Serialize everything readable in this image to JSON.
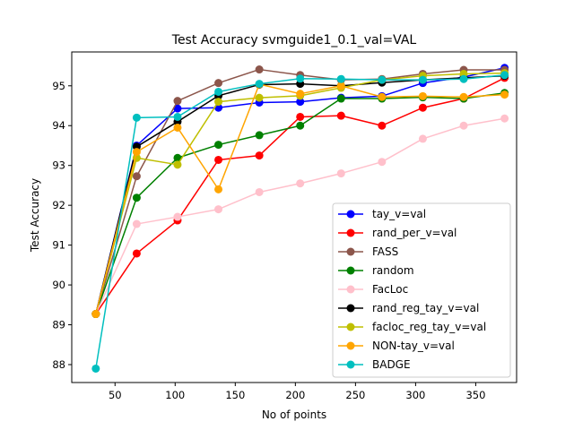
{
  "chart_data": {
    "type": "line",
    "title": "Test Accuracy svmguide1_0.1_val=VAL",
    "xlabel": "No of points",
    "ylabel": "Test Accuracy",
    "xlim": [
      14,
      384
    ],
    "ylim": [
      87.55,
      95.85
    ],
    "xticks": [
      50,
      100,
      150,
      200,
      250,
      300,
      350
    ],
    "yticks": [
      88,
      89,
      90,
      91,
      92,
      93,
      94,
      95
    ],
    "grid": false,
    "legend_position": "lower-right",
    "x": [
      34,
      68,
      102,
      136,
      170,
      204,
      238,
      272,
      306,
      340,
      374
    ],
    "series": [
      {
        "name": "tay_v=val",
        "color": "#0000ff",
        "values": [
          89.27,
          93.5,
          94.43,
          94.45,
          94.58,
          94.6,
          94.7,
          94.74,
          95.07,
          95.22,
          95.45
        ]
      },
      {
        "name": "rand_per_v=val",
        "color": "#ff0000",
        "values": [
          89.27,
          90.79,
          91.62,
          93.14,
          93.25,
          94.22,
          94.25,
          94.0,
          94.45,
          94.68,
          95.2
        ]
      },
      {
        "name": "FASS",
        "color": "#8c564b",
        "values": [
          89.27,
          92.73,
          94.62,
          95.07,
          95.41,
          95.27,
          95.15,
          95.17,
          95.3,
          95.4,
          95.4
        ]
      },
      {
        "name": "random",
        "color": "#008000",
        "values": [
          89.27,
          92.19,
          93.19,
          93.52,
          93.76,
          94.0,
          94.68,
          94.68,
          94.71,
          94.68,
          94.82
        ]
      },
      {
        "name": "FacLoc",
        "color": "#ffc0cb",
        "values": [
          89.27,
          91.53,
          91.71,
          91.9,
          92.33,
          92.55,
          92.8,
          93.09,
          93.67,
          94.0,
          94.18
        ]
      },
      {
        "name": "rand_reg_tay_v=val",
        "color": "#000000",
        "values": [
          89.27,
          93.47,
          94.1,
          94.75,
          95.03,
          95.05,
          95.0,
          95.08,
          95.15,
          95.2,
          95.25
        ]
      },
      {
        "name": "facloc_reg_tay_v=val",
        "color": "#bfbf00",
        "values": [
          89.27,
          93.19,
          93.02,
          94.6,
          94.7,
          94.75,
          94.95,
          95.15,
          95.25,
          95.3,
          95.32
        ]
      },
      {
        "name": "NON-tay_v=val",
        "color": "#ffa500",
        "values": [
          89.27,
          93.34,
          93.95,
          92.4,
          95.04,
          94.8,
          95.0,
          94.72,
          94.74,
          94.72,
          94.78
        ]
      },
      {
        "name": "BADGE",
        "color": "#00bfbf",
        "values": [
          87.9,
          94.2,
          94.22,
          94.85,
          95.05,
          95.18,
          95.17,
          95.15,
          95.15,
          95.17,
          95.27
        ]
      }
    ]
  }
}
